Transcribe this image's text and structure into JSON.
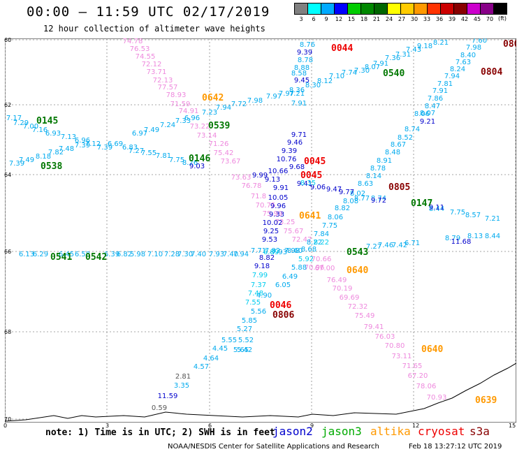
{
  "header": {
    "title": "00:00 – 11:59 UTC 02/17/2019",
    "subtitle": "12 hour collection of altimeter wave heights"
  },
  "color_scale": {
    "unit": "(ft)",
    "items": [
      {
        "label": "3",
        "color": "#808080"
      },
      {
        "label": "6",
        "color": "#00ffff"
      },
      {
        "label": "9",
        "color": "#00aaff"
      },
      {
        "label": "12",
        "color": "#0000ff"
      },
      {
        "label": "15",
        "color": "#00cc00"
      },
      {
        "label": "18",
        "color": "#008800"
      },
      {
        "label": "21",
        "color": "#006600"
      },
      {
        "label": "24",
        "color": "#ffff00"
      },
      {
        "label": "27",
        "color": "#ffcc00"
      },
      {
        "label": "30",
        "color": "#ff9900"
      },
      {
        "label": "33",
        "color": "#ff3300"
      },
      {
        "label": "36",
        "color": "#cc0000"
      },
      {
        "label": "39",
        "color": "#880000"
      },
      {
        "label": "42",
        "color": "#cc00cc"
      },
      {
        "label": "45",
        "color": "#880088"
      },
      {
        "label": "70",
        "color": "#000000"
      }
    ]
  },
  "axes": {
    "x_ticks": [
      "0",
      "3",
      "6",
      "9",
      "12",
      "15"
    ],
    "y_ticks": [
      "60",
      "62",
      "64",
      "66",
      "68",
      "70"
    ]
  },
  "colors": {
    "jason2": "#0000cc",
    "jason3": "#00aa00",
    "altika": "#ff9900",
    "cryosat": "#ee0000",
    "s3a": "#880000",
    "cyan": "#00aaee",
    "lightcyan": "#00ccee",
    "pink": "#ee88dd",
    "darkgreen": "#007700",
    "grey": "#555555",
    "grid": "#888888"
  },
  "tracks": [
    {
      "color": "pink",
      "points": [
        [
          "74.78",
          190,
          58
        ],
        [
          "76.53",
          200,
          69
        ],
        [
          "74.55",
          208,
          80
        ],
        [
          "72.12",
          217,
          91
        ],
        [
          "73.71",
          224,
          102
        ],
        [
          "72.13",
          233,
          114
        ],
        [
          "77.57",
          240,
          124
        ],
        [
          "78.93",
          252,
          135
        ],
        [
          "71.59",
          258,
          148
        ],
        [
          "74.91",
          270,
          158
        ],
        [
          "73.22",
          286,
          180
        ],
        [
          "73.14",
          296,
          193
        ],
        [
          "71.26",
          313,
          205
        ],
        [
          "75.42",
          320,
          218
        ],
        [
          "73.67",
          330,
          230
        ],
        [
          "73.63",
          345,
          253
        ],
        [
          "76.78",
          360,
          265
        ],
        [
          "71.8",
          370,
          280
        ],
        [
          "70.75",
          380,
          293
        ],
        [
          "75.99",
          390,
          305
        ],
        [
          "73.25",
          408,
          317
        ],
        [
          "75.67",
          420,
          330
        ],
        [
          "72.47",
          432,
          342
        ],
        [
          "70.96",
          450,
          382
        ],
        [
          "70.66",
          460,
          370
        ],
        [
          "67.00",
          465,
          383
        ],
        [
          "76.49",
          482,
          400
        ],
        [
          "70.19",
          490,
          412
        ],
        [
          "69.69",
          500,
          425
        ],
        [
          "72.32",
          512,
          438
        ],
        [
          "75.49",
          522,
          451
        ],
        [
          "79.41",
          535,
          467
        ],
        [
          "76.03",
          551,
          481
        ],
        [
          "70.80",
          565,
          494
        ],
        [
          "73.11",
          575,
          509
        ],
        [
          "71.65",
          590,
          523
        ],
        [
          "67.20",
          598,
          537
        ],
        [
          "78.06",
          610,
          552
        ],
        [
          "70.93",
          625,
          568
        ]
      ]
    },
    {
      "color": "cyan",
      "points": [
        [
          "7.17",
          20,
          168
        ],
        [
          "7.29",
          30,
          175
        ],
        [
          "7.00",
          44,
          180
        ],
        [
          "7.16",
          57,
          185
        ],
        [
          "6.93",
          76,
          190
        ],
        [
          "7.13",
          98,
          195
        ],
        [
          "6.96",
          118,
          200
        ],
        [
          "7.12",
          133,
          205
        ],
        [
          "7.39",
          150,
          210
        ],
        [
          "6.69",
          165,
          205
        ],
        [
          "6.83",
          186,
          210
        ],
        [
          "6.97",
          200,
          190
        ],
        [
          "7.49",
          217,
          185
        ],
        [
          "7.24",
          240,
          178
        ],
        [
          "7.33",
          262,
          172
        ],
        [
          "6.96",
          275,
          168
        ],
        [
          "7.23",
          300,
          160
        ],
        [
          "7.94",
          320,
          153
        ],
        [
          "7.72",
          342,
          148
        ],
        [
          "7.98",
          365,
          143
        ],
        [
          "7.97",
          392,
          137
        ],
        [
          "7.97",
          410,
          133
        ],
        [
          "7.21",
          425,
          133
        ],
        [
          "7.91",
          428,
          147
        ]
      ]
    },
    {
      "color": "cyan",
      "points": [
        [
          "7.39",
          24,
          233
        ],
        [
          "7.49",
          38,
          228
        ],
        [
          "8.18",
          62,
          223
        ],
        [
          "7.82",
          80,
          217
        ],
        [
          "7.48",
          95,
          212
        ],
        [
          "7.39",
          118,
          207
        ],
        [
          "7.27",
          195,
          215
        ],
        [
          "7.55",
          213,
          218
        ],
        [
          "7.81",
          234,
          222
        ],
        [
          "7.75",
          253,
          228
        ],
        [
          "8.26",
          272,
          232
        ]
      ]
    },
    {
      "color": "cyan",
      "points": [
        [
          "8.76",
          440,
          63
        ],
        [
          "8.78",
          437,
          85
        ],
        [
          "8.88",
          432,
          96
        ],
        [
          "8.58",
          428,
          104
        ],
        [
          "8.36",
          425,
          128
        ],
        [
          "8.30",
          448,
          121
        ],
        [
          "8.12",
          465,
          115
        ],
        [
          "7.10",
          482,
          108
        ],
        [
          "7.74",
          500,
          103
        ],
        [
          "7.30",
          518,
          100
        ],
        [
          "8.07",
          533,
          95
        ],
        [
          "7.91",
          545,
          90
        ],
        [
          "7.36",
          562,
          82
        ],
        [
          "7.31",
          577,
          77
        ],
        [
          "7.43",
          592,
          70
        ],
        [
          "9.18",
          608,
          65
        ],
        [
          "8.21",
          631,
          60
        ]
      ]
    },
    {
      "color": "cyan",
      "points": [
        [
          "7.60",
          686,
          57
        ],
        [
          "7.98",
          678,
          67
        ],
        [
          "8.40",
          670,
          78
        ],
        [
          "7.63",
          663,
          88
        ],
        [
          "8.24",
          655,
          98
        ],
        [
          "7.94",
          647,
          108
        ],
        [
          "7.81",
          637,
          119
        ],
        [
          "7.91",
          630,
          129
        ],
        [
          "7.86",
          623,
          140
        ],
        [
          "8.47",
          619,
          151
        ],
        [
          "8.07",
          612,
          161
        ],
        [
          "8.06",
          604,
          162
        ],
        [
          "8.74",
          590,
          184
        ],
        [
          "8.52",
          580,
          196
        ],
        [
          "8.67",
          570,
          206
        ],
        [
          "8.48",
          562,
          217
        ],
        [
          "8.91",
          550,
          229
        ],
        [
          "8.78",
          541,
          240
        ],
        [
          "8.14",
          535,
          251
        ],
        [
          "8.63",
          523,
          262
        ],
        [
          "8.02",
          512,
          276
        ],
        [
          "8.08",
          502,
          287
        ],
        [
          "8.82",
          490,
          297
        ],
        [
          "8.06",
          480,
          310
        ],
        [
          "7.75",
          472,
          322
        ],
        [
          "7.84",
          460,
          334
        ],
        [
          "8.22",
          450,
          346
        ],
        [
          "8.68",
          442,
          356
        ],
        [
          "8.60",
          422,
          358
        ],
        [
          "7.93",
          400,
          360
        ]
      ]
    },
    {
      "color": "cyan",
      "points": [
        [
          "6.13",
          38,
          363
        ],
        [
          "6.29",
          58,
          363
        ],
        [
          "6.45",
          95,
          363
        ],
        [
          "6.58",
          118,
          363
        ],
        [
          "6.39",
          160,
          363
        ],
        [
          "6.82",
          178,
          363
        ],
        [
          "5.98",
          197,
          363
        ],
        [
          "7.10",
          222,
          363
        ],
        [
          "7.28",
          246,
          363
        ],
        [
          "7.30",
          265,
          363
        ],
        [
          "7.40",
          284,
          363
        ],
        [
          "7.93",
          310,
          363
        ],
        [
          "7.40",
          330,
          363
        ],
        [
          "7.94",
          345,
          363
        ],
        [
          "7.71",
          370,
          358
        ],
        [
          "7.82",
          390,
          358
        ],
        [
          "7.98",
          418,
          358
        ]
      ]
    },
    {
      "color": "cyan",
      "points": [
        [
          "7.27",
          535,
          352
        ],
        [
          "7.46",
          552,
          350
        ],
        [
          "7.42",
          572,
          350
        ],
        [
          "6.71",
          590,
          347
        ],
        [
          "8.79",
          648,
          340
        ],
        [
          "8.13",
          680,
          337
        ],
        [
          "8.44",
          705,
          337
        ],
        [
          "7.75",
          655,
          303
        ],
        [
          "8.57",
          677,
          307
        ],
        [
          "7.21",
          705,
          312
        ],
        [
          "8.44",
          625,
          298
        ],
        [
          "8.74",
          542,
          283
        ],
        [
          "8.77",
          518,
          283
        ]
      ]
    },
    {
      "color": "cyan",
      "points": [
        [
          "5.88",
          428,
          382
        ],
        [
          "6.05",
          405,
          407
        ],
        [
          "6.49",
          415,
          395
        ],
        [
          "4.90",
          378,
          422
        ],
        [
          "5.56",
          370,
          445
        ],
        [
          "5.85",
          357,
          458
        ],
        [
          "5.27",
          350,
          470
        ],
        [
          "5.52",
          352,
          486
        ],
        [
          "5.42",
          350,
          500
        ],
        [
          "5.55",
          328,
          486
        ],
        [
          "4.45",
          315,
          498
        ],
        [
          "5.65",
          345,
          500
        ],
        [
          "4.64",
          302,
          512
        ],
        [
          "4.57",
          288,
          524
        ],
        [
          "3.35",
          260,
          551
        ]
      ]
    },
    {
      "color": "jason2",
      "points": [
        [
          "9.39",
          436,
          74
        ],
        [
          "9.45",
          432,
          114
        ],
        [
          "9.71",
          428,
          192
        ],
        [
          "9.46",
          422,
          203
        ],
        [
          "9.39",
          414,
          215
        ],
        [
          "10.76",
          410,
          227
        ],
        [
          "9.68",
          425,
          238
        ],
        [
          "10.66",
          398,
          244
        ],
        [
          "9.99",
          372,
          250
        ],
        [
          "9.13",
          390,
          256
        ],
        [
          "9.91",
          402,
          268
        ],
        [
          "10.05",
          398,
          282
        ],
        [
          "9.96",
          398,
          294
        ],
        [
          "9.33",
          396,
          306
        ],
        [
          "10.02",
          390,
          318
        ],
        [
          "9.25",
          388,
          330
        ],
        [
          "9.53",
          386,
          342
        ],
        [
          "8.82",
          382,
          368
        ],
        [
          "9.18",
          375,
          380
        ],
        [
          "11.59",
          240,
          566
        ],
        [
          "9.47",
          478,
          270
        ],
        [
          "9.77",
          496,
          274
        ],
        [
          "9.06",
          455,
          267
        ],
        [
          "9.41",
          436,
          262
        ],
        [
          "9.72",
          542,
          286
        ],
        [
          "9.11",
          625,
          296
        ],
        [
          "11.68",
          660,
          345
        ],
        [
          "9.21",
          612,
          173
        ],
        [
          "9.03",
          282,
          237
        ]
      ]
    },
    {
      "color": "lightcyan",
      "points": [
        [
          "7.99",
          372,
          393
        ],
        [
          "7.37",
          370,
          407
        ],
        [
          "7.48",
          366,
          419
        ],
        [
          "7.55",
          362,
          432
        ],
        [
          "6.89",
          388,
          360
        ],
        [
          "5.92",
          438,
          370
        ],
        [
          "8.22",
          460,
          346
        ],
        [
          "8.35",
          441,
          261
        ]
      ]
    },
    {
      "color": "grey",
      "points": [
        [
          "2.81",
          262,
          538
        ],
        [
          "0.59",
          228,
          583
        ]
      ]
    }
  ],
  "labels": [
    {
      "text": "0044",
      "color": "cryosat",
      "x": 474,
      "y": 68
    },
    {
      "text": "0540",
      "color": "darkgreen",
      "x": 548,
      "y": 104
    },
    {
      "text": "0805",
      "color": "s3a",
      "x": 720,
      "y": 62
    },
    {
      "text": "0804",
      "color": "s3a",
      "x": 688,
      "y": 102
    },
    {
      "text": "0642",
      "color": "altika",
      "x": 289,
      "y": 139
    },
    {
      "text": "0145",
      "color": "darkgreen",
      "x": 52,
      "y": 172
    },
    {
      "text": "0539",
      "color": "darkgreen",
      "x": 298,
      "y": 179
    },
    {
      "text": "0146",
      "color": "darkgreen",
      "x": 270,
      "y": 226
    },
    {
      "text": "0538",
      "color": "darkgreen",
      "x": 58,
      "y": 237
    },
    {
      "text": "0045",
      "color": "cryosat",
      "x": 435,
      "y": 230
    },
    {
      "text": "0045",
      "color": "cryosat",
      "x": 430,
      "y": 250
    },
    {
      "text": "0805",
      "color": "s3a",
      "x": 556,
      "y": 267
    },
    {
      "text": "0147",
      "color": "darkgreen",
      "x": 588,
      "y": 290
    },
    {
      "text": "0641",
      "color": "altika",
      "x": 428,
      "y": 308
    },
    {
      "text": "0543",
      "color": "darkgreen",
      "x": 496,
      "y": 360
    },
    {
      "text": "0541",
      "color": "darkgreen",
      "x": 72,
      "y": 367
    },
    {
      "text": "0542",
      "color": "darkgreen",
      "x": 122,
      "y": 367
    },
    {
      "text": "0640",
      "color": "altika",
      "x": 496,
      "y": 386
    },
    {
      "text": "0046",
      "color": "cryosat",
      "x": 386,
      "y": 436
    },
    {
      "text": "0806",
      "color": "s3a",
      "x": 390,
      "y": 450
    },
    {
      "text": "0640",
      "color": "altika",
      "x": 603,
      "y": 499
    },
    {
      "text": "0639",
      "color": "altika",
      "x": 680,
      "y": 572
    }
  ],
  "footer": {
    "note": "note: 1) Time is in UTC; 2) SWH is in feet",
    "legend": [
      {
        "name": "jason2",
        "color": "#0000cc",
        "x": 390
      },
      {
        "name": "jason3",
        "color": "#00aa00",
        "x": 460
      },
      {
        "name": "altika",
        "color": "#ff9900",
        "x": 530
      },
      {
        "name": "cryosat",
        "color": "#ee0000",
        "x": 598
      },
      {
        "name": "s3a",
        "color": "#880000",
        "x": 672
      }
    ],
    "credit": "NOAA/NESDIS Center for Satellite Applications and Research",
    "timestamp": "Feb 18 13:27:12 UTC 2019"
  }
}
